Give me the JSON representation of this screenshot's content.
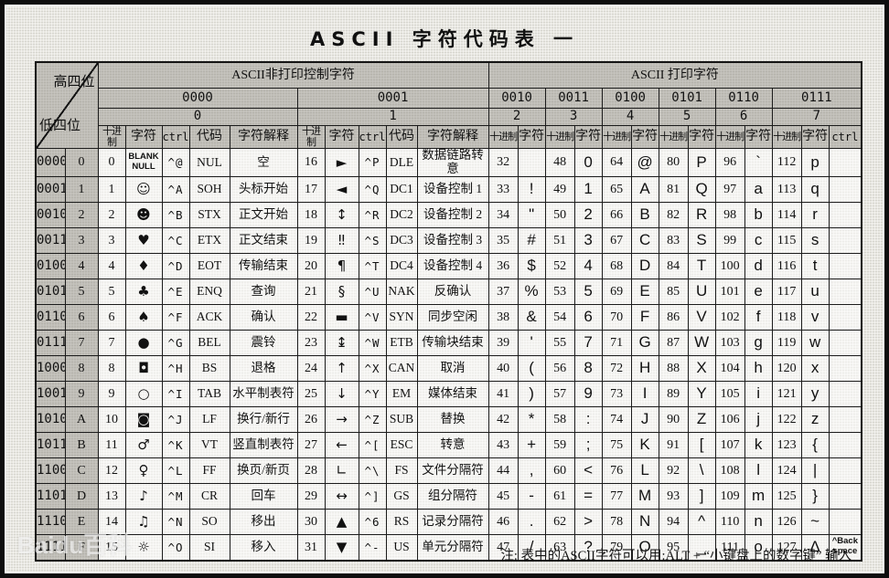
{
  "page": {
    "title": "ASCII 字符代码表 一",
    "note": "注: 表中的ASCII字符可以用:ALT + “小键盘上的数字键” 输入",
    "watermark": "Baidu百科"
  },
  "table": {
    "corner": {
      "top": "高四位",
      "bottom": "低四位"
    },
    "sections": {
      "control": "ASCII非打印控制字符",
      "print": "ASCII 打印字符"
    },
    "groups_binary": [
      "0000",
      "0001",
      "0010",
      "0011",
      "0100",
      "0101",
      "0110",
      "0111"
    ],
    "groups_hex": [
      "0",
      "1",
      "2",
      "3",
      "4",
      "5",
      "6",
      "7"
    ],
    "col_headers": {
      "dec": "十进制",
      "char": "字符",
      "ctrl": "ctrl",
      "code": "代码",
      "desc": "字符解释"
    },
    "rows": [
      {
        "bin": "0000",
        "hex": "0",
        "g0": {
          "dec": "0",
          "char": "BLANK\nNULL",
          "ctrl": "^@",
          "code": "NUL",
          "desc": "空"
        },
        "g1": {
          "dec": "16",
          "char": "►",
          "ctrl": "^P",
          "code": "DLE",
          "desc": "数据链路转意"
        },
        "g2": {
          "dec": "32",
          "char": ""
        },
        "g3": {
          "dec": "48",
          "char": "0"
        },
        "g4": {
          "dec": "64",
          "char": "@"
        },
        "g5": {
          "dec": "80",
          "char": "P"
        },
        "g6": {
          "dec": "96",
          "char": "`"
        },
        "g7": {
          "dec": "112",
          "char": "p",
          "ctrl": ""
        }
      },
      {
        "bin": "0001",
        "hex": "1",
        "g0": {
          "dec": "1",
          "char": "☺",
          "ctrl": "^A",
          "code": "SOH",
          "desc": "头标开始"
        },
        "g1": {
          "dec": "17",
          "char": "◄",
          "ctrl": "^Q",
          "code": "DC1",
          "desc": "设备控制 1"
        },
        "g2": {
          "dec": "33",
          "char": "!"
        },
        "g3": {
          "dec": "49",
          "char": "1"
        },
        "g4": {
          "dec": "65",
          "char": "A"
        },
        "g5": {
          "dec": "81",
          "char": "Q"
        },
        "g6": {
          "dec": "97",
          "char": "a"
        },
        "g7": {
          "dec": "113",
          "char": "q",
          "ctrl": ""
        }
      },
      {
        "bin": "0010",
        "hex": "2",
        "g0": {
          "dec": "2",
          "char": "☻",
          "ctrl": "^B",
          "code": "STX",
          "desc": "正文开始"
        },
        "g1": {
          "dec": "18",
          "char": "↕",
          "ctrl": "^R",
          "code": "DC2",
          "desc": "设备控制 2"
        },
        "g2": {
          "dec": "34",
          "char": "\""
        },
        "g3": {
          "dec": "50",
          "char": "2"
        },
        "g4": {
          "dec": "66",
          "char": "B"
        },
        "g5": {
          "dec": "82",
          "char": "R"
        },
        "g6": {
          "dec": "98",
          "char": "b"
        },
        "g7": {
          "dec": "114",
          "char": "r",
          "ctrl": ""
        }
      },
      {
        "bin": "0011",
        "hex": "3",
        "g0": {
          "dec": "3",
          "char": "♥",
          "ctrl": "^C",
          "code": "ETX",
          "desc": "正文结束"
        },
        "g1": {
          "dec": "19",
          "char": "‼",
          "ctrl": "^S",
          "code": "DC3",
          "desc": "设备控制 3"
        },
        "g2": {
          "dec": "35",
          "char": "#"
        },
        "g3": {
          "dec": "51",
          "char": "3"
        },
        "g4": {
          "dec": "67",
          "char": "C"
        },
        "g5": {
          "dec": "83",
          "char": "S"
        },
        "g6": {
          "dec": "99",
          "char": "c"
        },
        "g7": {
          "dec": "115",
          "char": "s",
          "ctrl": ""
        }
      },
      {
        "bin": "0100",
        "hex": "4",
        "g0": {
          "dec": "4",
          "char": "♦",
          "ctrl": "^D",
          "code": "EOT",
          "desc": "传输结束"
        },
        "g1": {
          "dec": "20",
          "char": "¶",
          "ctrl": "^T",
          "code": "DC4",
          "desc": "设备控制 4"
        },
        "g2": {
          "dec": "36",
          "char": "$"
        },
        "g3": {
          "dec": "52",
          "char": "4"
        },
        "g4": {
          "dec": "68",
          "char": "D"
        },
        "g5": {
          "dec": "84",
          "char": "T"
        },
        "g6": {
          "dec": "100",
          "char": "d"
        },
        "g7": {
          "dec": "116",
          "char": "t",
          "ctrl": ""
        }
      },
      {
        "bin": "0101",
        "hex": "5",
        "g0": {
          "dec": "5",
          "char": "♣",
          "ctrl": "^E",
          "code": "ENQ",
          "desc": "查询"
        },
        "g1": {
          "dec": "21",
          "char": "§",
          "ctrl": "^U",
          "code": "NAK",
          "desc": "反确认"
        },
        "g2": {
          "dec": "37",
          "char": "%"
        },
        "g3": {
          "dec": "53",
          "char": "5"
        },
        "g4": {
          "dec": "69",
          "char": "E"
        },
        "g5": {
          "dec": "85",
          "char": "U"
        },
        "g6": {
          "dec": "101",
          "char": "e"
        },
        "g7": {
          "dec": "117",
          "char": "u",
          "ctrl": ""
        }
      },
      {
        "bin": "0110",
        "hex": "6",
        "g0": {
          "dec": "6",
          "char": "♠",
          "ctrl": "^F",
          "code": "ACK",
          "desc": "确认"
        },
        "g1": {
          "dec": "22",
          "char": "▬",
          "ctrl": "^V",
          "code": "SYN",
          "desc": "同步空闲"
        },
        "g2": {
          "dec": "38",
          "char": "&"
        },
        "g3": {
          "dec": "54",
          "char": "6"
        },
        "g4": {
          "dec": "70",
          "char": "F"
        },
        "g5": {
          "dec": "86",
          "char": "V"
        },
        "g6": {
          "dec": "102",
          "char": "f"
        },
        "g7": {
          "dec": "118",
          "char": "v",
          "ctrl": ""
        }
      },
      {
        "bin": "0111",
        "hex": "7",
        "g0": {
          "dec": "7",
          "char": "●",
          "ctrl": "^G",
          "code": "BEL",
          "desc": "震铃"
        },
        "g1": {
          "dec": "23",
          "char": "↨",
          "ctrl": "^W",
          "code": "ETB",
          "desc": "传输块结束"
        },
        "g2": {
          "dec": "39",
          "char": "'"
        },
        "g3": {
          "dec": "55",
          "char": "7"
        },
        "g4": {
          "dec": "71",
          "char": "G"
        },
        "g5": {
          "dec": "87",
          "char": "W"
        },
        "g6": {
          "dec": "103",
          "char": "g"
        },
        "g7": {
          "dec": "119",
          "char": "w",
          "ctrl": ""
        }
      },
      {
        "bin": "1000",
        "hex": "8",
        "g0": {
          "dec": "8",
          "char": "◘",
          "ctrl": "^H",
          "code": "BS",
          "desc": "退格"
        },
        "g1": {
          "dec": "24",
          "char": "↑",
          "ctrl": "^X",
          "code": "CAN",
          "desc": "取消"
        },
        "g2": {
          "dec": "40",
          "char": "("
        },
        "g3": {
          "dec": "56",
          "char": "8"
        },
        "g4": {
          "dec": "72",
          "char": "H"
        },
        "g5": {
          "dec": "88",
          "char": "X"
        },
        "g6": {
          "dec": "104",
          "char": "h"
        },
        "g7": {
          "dec": "120",
          "char": "x",
          "ctrl": ""
        }
      },
      {
        "bin": "1001",
        "hex": "9",
        "g0": {
          "dec": "9",
          "char": "○",
          "ctrl": "^I",
          "code": "TAB",
          "desc": "水平制表符"
        },
        "g1": {
          "dec": "25",
          "char": "↓",
          "ctrl": "^Y",
          "code": "EM",
          "desc": "媒体结束"
        },
        "g2": {
          "dec": "41",
          "char": ")"
        },
        "g3": {
          "dec": "57",
          "char": "9"
        },
        "g4": {
          "dec": "73",
          "char": "I"
        },
        "g5": {
          "dec": "89",
          "char": "Y"
        },
        "g6": {
          "dec": "105",
          "char": "i"
        },
        "g7": {
          "dec": "121",
          "char": "y",
          "ctrl": ""
        }
      },
      {
        "bin": "1010",
        "hex": "A",
        "g0": {
          "dec": "10",
          "char": "◙",
          "ctrl": "^J",
          "code": "LF",
          "desc": "换行/新行"
        },
        "g1": {
          "dec": "26",
          "char": "→",
          "ctrl": "^Z",
          "code": "SUB",
          "desc": "替换"
        },
        "g2": {
          "dec": "42",
          "char": "*"
        },
        "g3": {
          "dec": "58",
          "char": ":"
        },
        "g4": {
          "dec": "74",
          "char": "J"
        },
        "g5": {
          "dec": "90",
          "char": "Z"
        },
        "g6": {
          "dec": "106",
          "char": "j"
        },
        "g7": {
          "dec": "122",
          "char": "z",
          "ctrl": ""
        }
      },
      {
        "bin": "1011",
        "hex": "B",
        "g0": {
          "dec": "11",
          "char": "♂",
          "ctrl": "^K",
          "code": "VT",
          "desc": "竖直制表符"
        },
        "g1": {
          "dec": "27",
          "char": "←",
          "ctrl": "^[",
          "code": "ESC",
          "desc": "转意"
        },
        "g2": {
          "dec": "43",
          "char": "+"
        },
        "g3": {
          "dec": "59",
          "char": ";"
        },
        "g4": {
          "dec": "75",
          "char": "K"
        },
        "g5": {
          "dec": "91",
          "char": "["
        },
        "g6": {
          "dec": "107",
          "char": "k"
        },
        "g7": {
          "dec": "123",
          "char": "{",
          "ctrl": ""
        }
      },
      {
        "bin": "1100",
        "hex": "C",
        "g0": {
          "dec": "12",
          "char": "♀",
          "ctrl": "^L",
          "code": "FF",
          "desc": "换页/新页"
        },
        "g1": {
          "dec": "28",
          "char": "∟",
          "ctrl": "^\\",
          "code": "FS",
          "desc": "文件分隔符"
        },
        "g2": {
          "dec": "44",
          "char": ","
        },
        "g3": {
          "dec": "60",
          "char": "<"
        },
        "g4": {
          "dec": "76",
          "char": "L"
        },
        "g5": {
          "dec": "92",
          "char": "\\"
        },
        "g6": {
          "dec": "108",
          "char": "l"
        },
        "g7": {
          "dec": "124",
          "char": "|",
          "ctrl": ""
        }
      },
      {
        "bin": "1101",
        "hex": "D",
        "g0": {
          "dec": "13",
          "char": "♪",
          "ctrl": "^M",
          "code": "CR",
          "desc": "回车"
        },
        "g1": {
          "dec": "29",
          "char": "↔",
          "ctrl": "^]",
          "code": "GS",
          "desc": "组分隔符"
        },
        "g2": {
          "dec": "45",
          "char": "-"
        },
        "g3": {
          "dec": "61",
          "char": "="
        },
        "g4": {
          "dec": "77",
          "char": "M"
        },
        "g5": {
          "dec": "93",
          "char": "]"
        },
        "g6": {
          "dec": "109",
          "char": "m"
        },
        "g7": {
          "dec": "125",
          "char": "}",
          "ctrl": ""
        }
      },
      {
        "bin": "1110",
        "hex": "E",
        "g0": {
          "dec": "14",
          "char": "♫",
          "ctrl": "^N",
          "code": "SO",
          "desc": "移出"
        },
        "g1": {
          "dec": "30",
          "char": "▲",
          "ctrl": "^6",
          "code": "RS",
          "desc": "记录分隔符"
        },
        "g2": {
          "dec": "46",
          "char": "."
        },
        "g3": {
          "dec": "62",
          "char": ">"
        },
        "g4": {
          "dec": "78",
          "char": "N"
        },
        "g5": {
          "dec": "94",
          "char": "^"
        },
        "g6": {
          "dec": "110",
          "char": "n"
        },
        "g7": {
          "dec": "126",
          "char": "~",
          "ctrl": ""
        }
      },
      {
        "bin": "1111",
        "hex": "F",
        "g0": {
          "dec": "15",
          "char": "☼",
          "ctrl": "^O",
          "code": "SI",
          "desc": "移入"
        },
        "g1": {
          "dec": "31",
          "char": "▼",
          "ctrl": "^-",
          "code": "US",
          "desc": "单元分隔符"
        },
        "g2": {
          "dec": "47",
          "char": "/"
        },
        "g3": {
          "dec": "63",
          "char": "?"
        },
        "g4": {
          "dec": "79",
          "char": "O"
        },
        "g5": {
          "dec": "95",
          "char": "_"
        },
        "g6": {
          "dec": "111",
          "char": "o"
        },
        "g7": {
          "dec": "127",
          "char": "Δ",
          "ctrl": "^Back\nspace"
        }
      }
    ]
  }
}
